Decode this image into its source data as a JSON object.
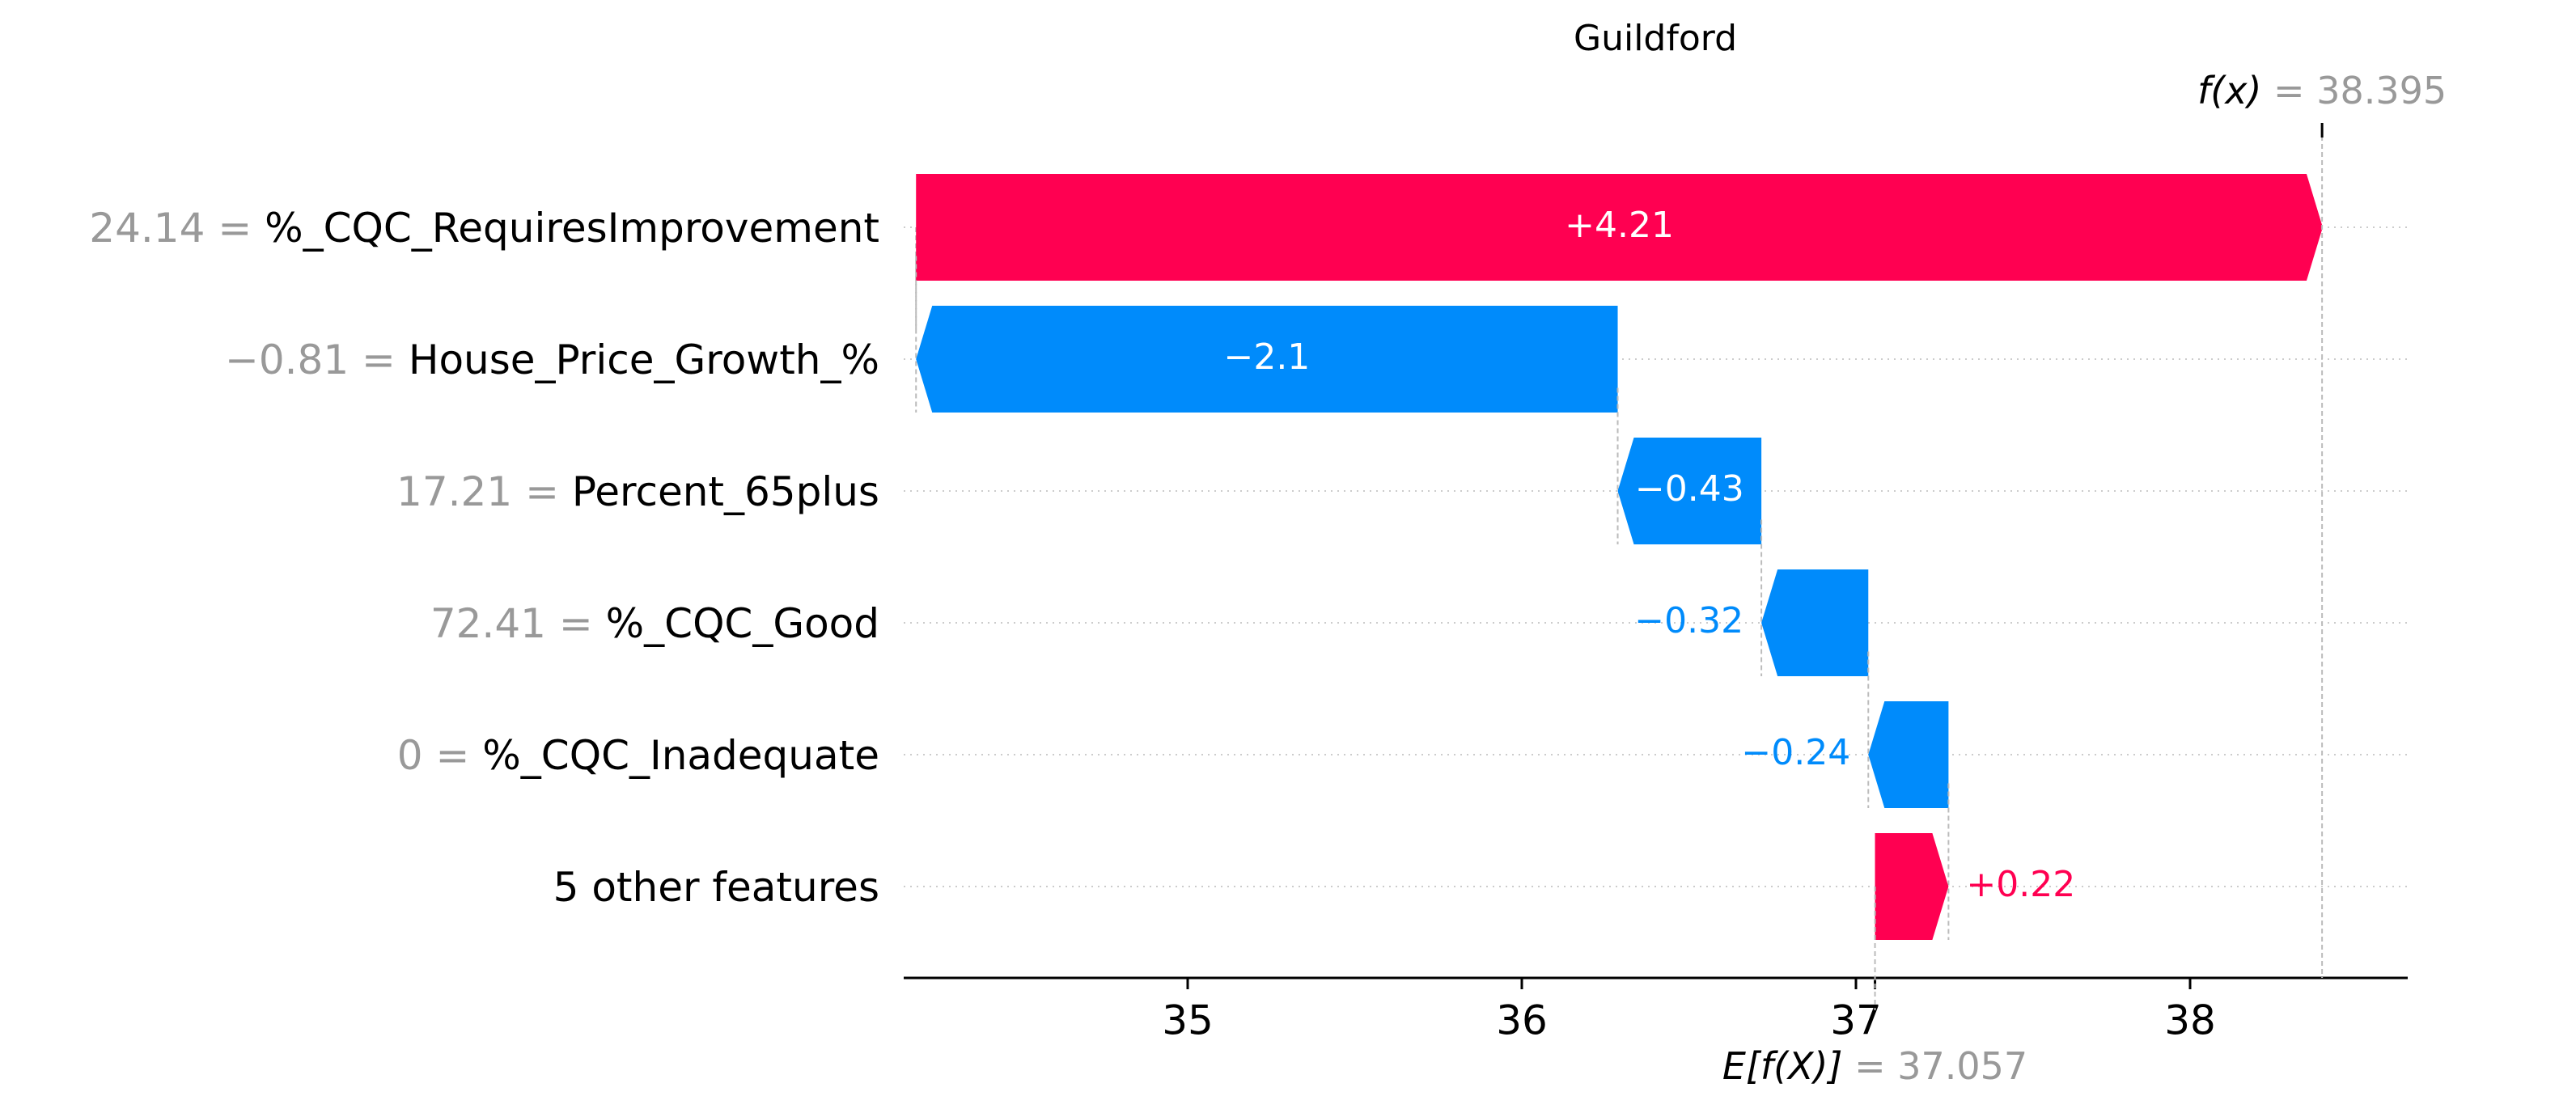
{
  "chart_data": {
    "type": "waterfall",
    "title": "Guildford",
    "fx_label": "f(x)",
    "fx_value_text": "= 38.395",
    "fx": 38.395,
    "ex_label": "E[f(X)]",
    "ex_value_text": "= 37.057",
    "base": 37.057,
    "xlim": [
      34.85,
      38.95
    ],
    "xticks": [
      35,
      36,
      37,
      38
    ],
    "tick_labels": [
      "35",
      "36",
      "37",
      "38"
    ],
    "colors": {
      "positive": "#ff0051",
      "negative": "#008bfb",
      "value_gray": "#999999",
      "text": "#000000"
    },
    "features": [
      {
        "value_text": "24.14 =",
        "name": "%_CQC_RequiresImprovement",
        "shap": 4.21,
        "label": "+4.21"
      },
      {
        "value_text": "−0.81 =",
        "name": "House_Price_Growth_%",
        "shap": -2.1,
        "label": "−2.1"
      },
      {
        "value_text": "17.21 =",
        "name": "Percent_65plus",
        "shap": -0.43,
        "label": "−0.43"
      },
      {
        "value_text": "72.41 =",
        "name": "%_CQC_Good",
        "shap": -0.32,
        "label": "−0.32"
      },
      {
        "value_text": "0 =",
        "name": "%_CQC_Inadequate",
        "shap": -0.24,
        "label": "−0.24"
      },
      {
        "value_text": "",
        "name": "5 other features",
        "shap": 0.22,
        "label": "+0.22"
      }
    ]
  }
}
